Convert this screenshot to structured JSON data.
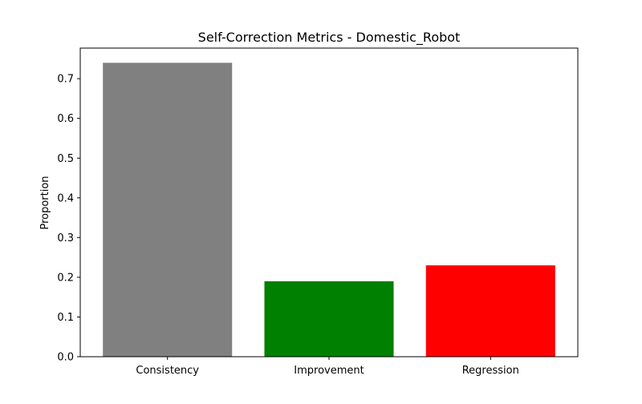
{
  "chart_data": {
    "type": "bar",
    "title": "Self-Correction Metrics - Domestic_Robot",
    "xlabel": "",
    "ylabel": "Proportion",
    "categories": [
      "Consistency",
      "Improvement",
      "Regression"
    ],
    "values": [
      0.74,
      0.19,
      0.23
    ],
    "colors": [
      "#808080",
      "#008000",
      "#ff0000"
    ],
    "ylim": [
      0,
      0.777
    ],
    "yticks": [
      0.0,
      0.1,
      0.2,
      0.3,
      0.4,
      0.5,
      0.6,
      0.7
    ],
    "ytick_labels": [
      "0.0",
      "0.1",
      "0.2",
      "0.3",
      "0.4",
      "0.5",
      "0.6",
      "0.7"
    ],
    "grid": false,
    "legend": "none"
  }
}
